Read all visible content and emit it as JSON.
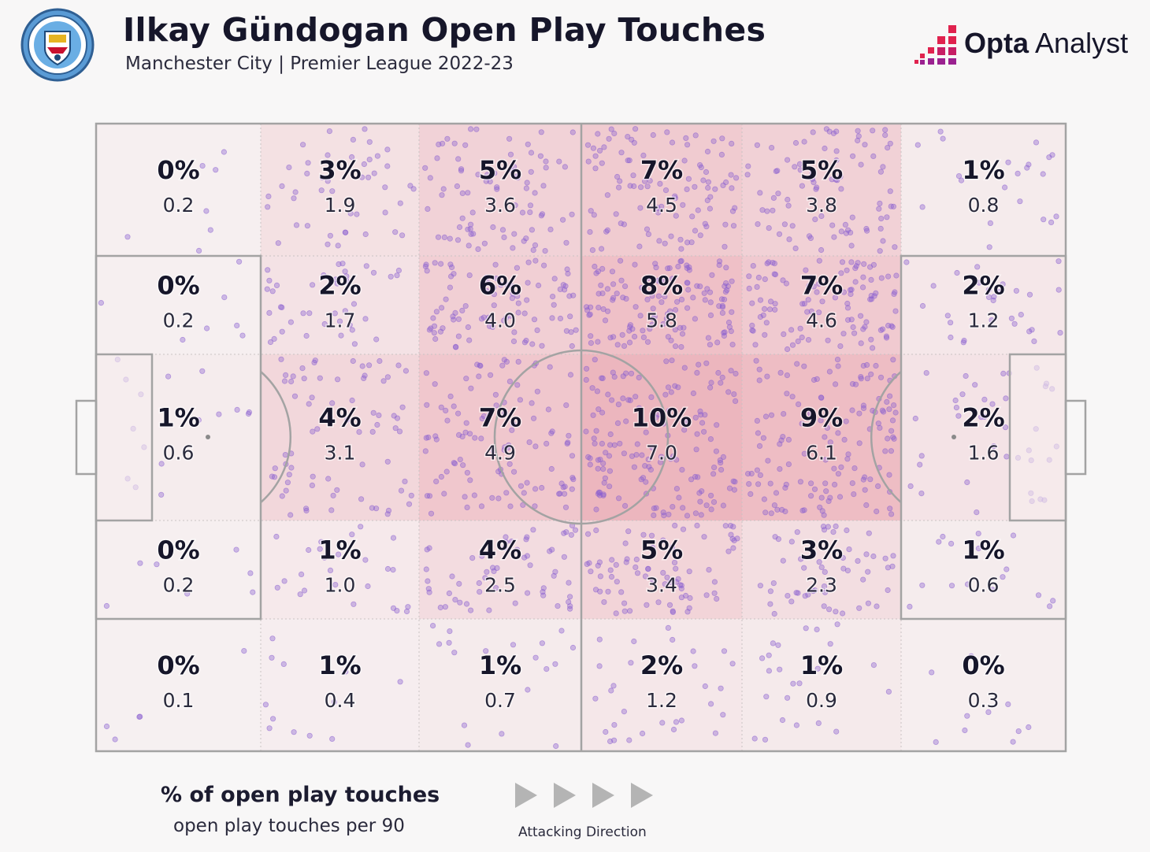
{
  "header": {
    "title": "Ilkay Gündogan Open Play Touches",
    "subtitle": "Manchester City | Premier League 2022-23",
    "crest_icon": "manchester-city-crest-icon",
    "brand": {
      "bold": "Opta",
      "light": " Analyst",
      "icon": "opta-bars-icon"
    }
  },
  "chart_data": {
    "type": "heatmap",
    "grid": "5 rows x 6 columns pitch zones",
    "attacking_direction": "left-to-right",
    "rows": [
      [
        {
          "pct": "0%",
          "per90": "0.2"
        },
        {
          "pct": "3%",
          "per90": "1.9"
        },
        {
          "pct": "5%",
          "per90": "3.6"
        },
        {
          "pct": "7%",
          "per90": "4.5"
        },
        {
          "pct": "5%",
          "per90": "3.8"
        },
        {
          "pct": "1%",
          "per90": "0.8"
        }
      ],
      [
        {
          "pct": "0%",
          "per90": "0.2"
        },
        {
          "pct": "2%",
          "per90": "1.7"
        },
        {
          "pct": "6%",
          "per90": "4.0"
        },
        {
          "pct": "8%",
          "per90": "5.8"
        },
        {
          "pct": "7%",
          "per90": "4.6"
        },
        {
          "pct": "2%",
          "per90": "1.2"
        }
      ],
      [
        {
          "pct": "1%",
          "per90": "0.6"
        },
        {
          "pct": "4%",
          "per90": "3.1"
        },
        {
          "pct": "7%",
          "per90": "4.9"
        },
        {
          "pct": "10%",
          "per90": "7.0"
        },
        {
          "pct": "9%",
          "per90": "6.1"
        },
        {
          "pct": "2%",
          "per90": "1.6"
        }
      ],
      [
        {
          "pct": "0%",
          "per90": "0.2"
        },
        {
          "pct": "1%",
          "per90": "1.0"
        },
        {
          "pct": "4%",
          "per90": "2.5"
        },
        {
          "pct": "5%",
          "per90": "3.4"
        },
        {
          "pct": "3%",
          "per90": "2.3"
        },
        {
          "pct": "1%",
          "per90": "0.6"
        }
      ],
      [
        {
          "pct": "0%",
          "per90": "0.1"
        },
        {
          "pct": "1%",
          "per90": "0.4"
        },
        {
          "pct": "1%",
          "per90": "0.7"
        },
        {
          "pct": "2%",
          "per90": "1.2"
        },
        {
          "pct": "1%",
          "per90": "0.9"
        },
        {
          "pct": "0%",
          "per90": "0.3"
        }
      ]
    ],
    "colors": {
      "heat": "#e58a98",
      "dot": "#8a5fd0",
      "line": "#a3a3a3",
      "text": "#16162a"
    }
  },
  "legend": {
    "title": "% of open play touches",
    "subtitle": "open play touches per 90",
    "direction_label": "Attacking Direction",
    "arrow_icon": "play-arrow-icon"
  }
}
